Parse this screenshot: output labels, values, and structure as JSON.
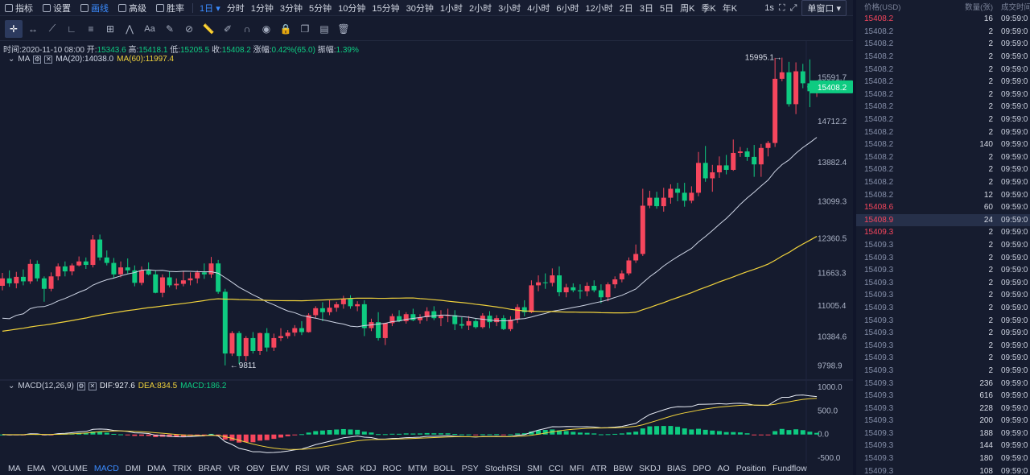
{
  "topbar": {
    "buttons": [
      {
        "label": "指标",
        "icon": "indicator-icon"
      },
      {
        "label": "设置",
        "icon": "gear-icon"
      },
      {
        "label": "画线",
        "icon": "pen-icon",
        "active": true
      },
      {
        "label": "高级",
        "icon": "calendar-icon"
      },
      {
        "label": "胜率",
        "icon": "clock-icon"
      }
    ],
    "interval_selected": "1日",
    "timeframes": [
      "分时",
      "1分钟",
      "3分钟",
      "5分钟",
      "10分钟",
      "15分钟",
      "30分钟",
      "1小时",
      "2小时",
      "3小时",
      "4小时",
      "6小时",
      "12小时",
      "2日",
      "3日",
      "5日",
      "周K",
      "季K",
      "年K"
    ],
    "refresh": "1s",
    "window_select": "单窗口"
  },
  "draw_tools": [
    "crosshair-icon",
    "hline-icon",
    "trendline-icon",
    "angle-icon",
    "channel-icon",
    "fib-icon",
    "pattern-icon",
    "text-icon",
    "brush-icon",
    "measure-icon",
    "ruler-icon",
    "edit-icon",
    "magnet-icon",
    "eye-icon",
    "lock-icon",
    "clone-icon",
    "layers-icon",
    "trash-icon"
  ],
  "draw_tool_text": "Aa",
  "info": {
    "time_label": "时间:",
    "time": "2020-11-10 08:00",
    "open_label": "开:",
    "open": "15343.6",
    "high_label": "高:",
    "high": "15418.1",
    "low_label": "低:",
    "low": "15205.5",
    "close_label": "收:",
    "close": "15408.2",
    "change_label": "涨幅:",
    "change": "0.42%(65.0)",
    "amp_label": "振幅:",
    "amp": "1.39%"
  },
  "ma_legend": {
    "name": "MA",
    "ma20": "MA(20):14038.0",
    "ma60": "MA(60):11997.4"
  },
  "macd_legend": {
    "name": "MACD(12,26,9)",
    "dif": "DIF:927.6",
    "dea": "DEA:834.5",
    "macd": "MACD:186.2"
  },
  "price_axis": [
    "15591.7",
    "14712.2",
    "13882.4",
    "13099.3",
    "12360.5",
    "11663.3",
    "11005.4",
    "10384.6",
    "9798.9"
  ],
  "macd_axis": [
    "1000.0",
    "500.0",
    "0.0",
    "-500.0"
  ],
  "current_price": "15408.2",
  "annotations": {
    "high": "15995.1",
    "low": "9811"
  },
  "colors": {
    "up": "#f6465d",
    "down": "#0ecb81",
    "ma20": "#cfd6e6",
    "ma60": "#f0d23c",
    "accent": "#3b8cff"
  },
  "chart_data": {
    "type": "candlestick",
    "ohlc": [
      [
        11410,
        11670,
        11320,
        11560
      ],
      [
        11560,
        11720,
        11390,
        11460
      ],
      [
        11460,
        11690,
        11360,
        11590
      ],
      [
        11590,
        11740,
        11420,
        11500
      ],
      [
        11500,
        11940,
        11450,
        11850
      ],
      [
        11850,
        11920,
        11500,
        11560
      ],
      [
        11560,
        11600,
        11090,
        11350
      ],
      [
        11350,
        11680,
        11300,
        11600
      ],
      [
        11600,
        11860,
        11520,
        11800
      ],
      [
        11800,
        11900,
        11600,
        11700
      ],
      [
        11700,
        11860,
        11620,
        11820
      ],
      [
        11820,
        12000,
        11800,
        11900
      ],
      [
        11900,
        11980,
        11750,
        11830
      ],
      [
        11830,
        12430,
        11780,
        12340
      ],
      [
        12340,
        12440,
        11920,
        11980
      ],
      [
        11980,
        12120,
        11820,
        11870
      ],
      [
        11870,
        11970,
        11560,
        11640
      ],
      [
        11640,
        11900,
        11580,
        11780
      ],
      [
        11780,
        11960,
        11660,
        11720
      ],
      [
        11720,
        11820,
        11400,
        11470
      ],
      [
        11470,
        11800,
        11420,
        11720
      ],
      [
        11720,
        11880,
        11620,
        11640
      ],
      [
        11640,
        11720,
        11260,
        11270
      ],
      [
        11270,
        11640,
        11180,
        11580
      ],
      [
        11580,
        11700,
        11380,
        11420
      ],
      [
        11420,
        11560,
        11340,
        11450
      ],
      [
        11450,
        11700,
        11400,
        11520
      ],
      [
        11520,
        11680,
        11420,
        11560
      ],
      [
        11560,
        11720,
        11460,
        11680
      ],
      [
        11680,
        11860,
        11550,
        11640
      ],
      [
        11640,
        11990,
        11570,
        11860
      ],
      [
        11860,
        11930,
        11250,
        11290
      ],
      [
        11290,
        11350,
        9811,
        10050
      ],
      [
        10050,
        10500,
        10000,
        10460
      ],
      [
        10460,
        10500,
        9840,
        10000
      ],
      [
        10000,
        10400,
        9900,
        10360
      ],
      [
        10360,
        10480,
        10050,
        10100
      ],
      [
        10100,
        10470,
        10020,
        10460
      ],
      [
        10460,
        10560,
        10090,
        10170
      ],
      [
        10170,
        10450,
        10100,
        10360
      ],
      [
        10360,
        10560,
        10300,
        10400
      ],
      [
        10400,
        10520,
        10350,
        10470
      ],
      [
        10470,
        10620,
        10400,
        10560
      ],
      [
        10560,
        10700,
        10420,
        10480
      ],
      [
        10480,
        10860,
        10470,
        10820
      ],
      [
        10820,
        11000,
        10760,
        10960
      ],
      [
        10960,
        11080,
        10700,
        10880
      ],
      [
        10880,
        11120,
        10820,
        10970
      ],
      [
        10970,
        11090,
        10890,
        11040
      ],
      [
        11040,
        11210,
        10950,
        11150
      ],
      [
        11150,
        11220,
        10950,
        11000
      ],
      [
        11000,
        11100,
        10900,
        11040
      ],
      [
        11040,
        11120,
        10400,
        10560
      ],
      [
        10560,
        10750,
        10500,
        10680
      ],
      [
        10680,
        10880,
        10310,
        10360
      ],
      [
        10360,
        10670,
        10220,
        10660
      ],
      [
        10660,
        10850,
        10600,
        10800
      ],
      [
        10800,
        10920,
        10680,
        10700
      ],
      [
        10700,
        10880,
        10650,
        10840
      ],
      [
        10840,
        10950,
        10700,
        10720
      ],
      [
        10720,
        10840,
        10650,
        10780
      ],
      [
        10780,
        10980,
        10700,
        10900
      ],
      [
        10900,
        11000,
        10720,
        10760
      ],
      [
        10760,
        10920,
        10600,
        10810
      ],
      [
        10810,
        10950,
        10680,
        10820
      ],
      [
        10820,
        10920,
        10520,
        10640
      ],
      [
        10640,
        10780,
        10550,
        10610
      ],
      [
        10610,
        10800,
        10520,
        10700
      ],
      [
        10700,
        10760,
        10550,
        10580
      ],
      [
        10580,
        10860,
        10550,
        10810
      ],
      [
        10810,
        10900,
        10560,
        10680
      ],
      [
        10680,
        10820,
        10600,
        10760
      ],
      [
        10760,
        10820,
        10520,
        10540
      ],
      [
        10540,
        10800,
        10500,
        10730
      ],
      [
        10730,
        11040,
        10660,
        10980
      ],
      [
        10980,
        11120,
        10800,
        10880
      ],
      [
        10880,
        11520,
        10860,
        11420
      ],
      [
        11420,
        11620,
        11300,
        11480
      ],
      [
        11480,
        11660,
        11350,
        11470
      ],
      [
        11470,
        11760,
        11400,
        11620
      ],
      [
        11620,
        11800,
        11200,
        11280
      ],
      [
        11280,
        11450,
        11180,
        11380
      ],
      [
        11380,
        11460,
        11280,
        11320
      ],
      [
        11320,
        11440,
        11150,
        11300
      ],
      [
        11300,
        11480,
        11200,
        11410
      ],
      [
        11410,
        11520,
        11280,
        11320
      ],
      [
        11320,
        11440,
        11060,
        11180
      ],
      [
        11180,
        11480,
        11100,
        11440
      ],
      [
        11440,
        11600,
        11360,
        11540
      ],
      [
        11540,
        11720,
        11480,
        11660
      ],
      [
        11660,
        11980,
        11620,
        11920
      ],
      [
        11920,
        12240,
        11870,
        12050
      ],
      [
        12050,
        13360,
        12010,
        13020
      ],
      [
        13020,
        13320,
        12970,
        13180
      ],
      [
        13180,
        13300,
        12960,
        13010
      ],
      [
        13010,
        13380,
        12900,
        13180
      ],
      [
        13180,
        13450,
        13060,
        13360
      ],
      [
        13360,
        13480,
        13110,
        13280
      ],
      [
        13280,
        13480,
        13000,
        13120
      ],
      [
        13120,
        13410,
        13070,
        13280
      ],
      [
        13280,
        14100,
        13210,
        13880
      ],
      [
        13880,
        14220,
        13500,
        13570
      ],
      [
        13570,
        13840,
        13300,
        13690
      ],
      [
        13690,
        14010,
        13580,
        13830
      ],
      [
        13830,
        14040,
        13650,
        13740
      ],
      [
        13740,
        14350,
        13720,
        14080
      ],
      [
        14080,
        14200,
        14000,
        14110
      ],
      [
        14110,
        14180,
        13920,
        14000
      ],
      [
        14000,
        14240,
        13600,
        13850
      ],
      [
        13850,
        14260,
        13600,
        14180
      ],
      [
        14180,
        14320,
        14010,
        14280
      ],
      [
        14280,
        15990,
        14200,
        15570
      ],
      [
        15570,
        15995,
        15520,
        15700
      ],
      [
        15700,
        15910,
        15010,
        15060
      ],
      [
        15060,
        15900,
        14860,
        15720
      ],
      [
        15720,
        15870,
        15380,
        15480
      ],
      [
        15480,
        15960,
        15000,
        15320
      ],
      [
        15343.6,
        15418.1,
        15205.5,
        15408.2
      ]
    ],
    "ma_series": [
      {
        "name": "MA(20)"
      },
      {
        "name": "MA(60)"
      }
    ],
    "macd_series": [
      {
        "name": "DIF"
      },
      {
        "name": "DEA"
      },
      {
        "name": "MACD"
      }
    ],
    "price_range": [
      9550,
      16150
    ],
    "macd_range": [
      -600,
      1050
    ],
    "grid": false
  },
  "indicators": [
    "MA",
    "EMA",
    "VOLUME",
    "MACD",
    "DMI",
    "DMA",
    "TRIX",
    "BRAR",
    "VR",
    "OBV",
    "EMV",
    "RSI",
    "WR",
    "SAR",
    "KDJ",
    "ROC",
    "MTM",
    "BOLL",
    "PSY",
    "StochRSI",
    "SMI",
    "CCI",
    "MFI",
    "ATR",
    "BBW",
    "SKDJ",
    "BIAS",
    "DPO",
    "AO",
    "Position",
    "Fundflow"
  ],
  "active_indicator": "MACD",
  "trades": {
    "headers": {
      "price": "价格(USD)",
      "qty": "数量(张)",
      "time": "成交时间"
    },
    "rows": [
      {
        "price": "15408.2",
        "qty": "16",
        "time": "09:59:0",
        "side": "up"
      },
      {
        "price": "15408.2",
        "qty": "2",
        "time": "09:59:0",
        "side": "dn"
      },
      {
        "price": "15408.2",
        "qty": "2",
        "time": "09:59:0",
        "side": "dn"
      },
      {
        "price": "15408.2",
        "qty": "2",
        "time": "09:59:0",
        "side": "dn"
      },
      {
        "price": "15408.2",
        "qty": "2",
        "time": "09:59:0",
        "side": "dn"
      },
      {
        "price": "15408.2",
        "qty": "2",
        "time": "09:59:0",
        "side": "dn"
      },
      {
        "price": "15408.2",
        "qty": "2",
        "time": "09:59:0",
        "side": "dn"
      },
      {
        "price": "15408.2",
        "qty": "2",
        "time": "09:59:0",
        "side": "dn"
      },
      {
        "price": "15408.2",
        "qty": "2",
        "time": "09:59:0",
        "side": "dn"
      },
      {
        "price": "15408.2",
        "qty": "2",
        "time": "09:59:0",
        "side": "dn"
      },
      {
        "price": "15408.2",
        "qty": "140",
        "time": "09:59:0",
        "side": "dn"
      },
      {
        "price": "15408.2",
        "qty": "2",
        "time": "09:59:0",
        "side": "dn"
      },
      {
        "price": "15408.2",
        "qty": "2",
        "time": "09:59:0",
        "side": "dn"
      },
      {
        "price": "15408.2",
        "qty": "2",
        "time": "09:59:0",
        "side": "dn"
      },
      {
        "price": "15408.2",
        "qty": "12",
        "time": "09:59:0",
        "side": "dn"
      },
      {
        "price": "15408.6",
        "qty": "60",
        "time": "09:59:0",
        "side": "up"
      },
      {
        "price": "15408.9",
        "qty": "24",
        "time": "09:59:0",
        "side": "up",
        "hl": true
      },
      {
        "price": "15409.3",
        "qty": "2",
        "time": "09:59:0",
        "side": "up"
      },
      {
        "price": "15409.3",
        "qty": "2",
        "time": "09:59:0",
        "side": "dn"
      },
      {
        "price": "15409.3",
        "qty": "2",
        "time": "09:59:0",
        "side": "dn"
      },
      {
        "price": "15409.3",
        "qty": "2",
        "time": "09:59:0",
        "side": "dn"
      },
      {
        "price": "15409.3",
        "qty": "2",
        "time": "09:59:0",
        "side": "dn"
      },
      {
        "price": "15409.3",
        "qty": "2",
        "time": "09:59:0",
        "side": "dn"
      },
      {
        "price": "15409.3",
        "qty": "2",
        "time": "09:59:0",
        "side": "dn"
      },
      {
        "price": "15409.3",
        "qty": "2",
        "time": "09:59:0",
        "side": "dn"
      },
      {
        "price": "15409.3",
        "qty": "2",
        "time": "09:59:0",
        "side": "dn"
      },
      {
        "price": "15409.3",
        "qty": "2",
        "time": "09:59:0",
        "side": "dn"
      },
      {
        "price": "15409.3",
        "qty": "2",
        "time": "09:59:0",
        "side": "dn"
      },
      {
        "price": "15409.3",
        "qty": "2",
        "time": "09:59:0",
        "side": "dn"
      },
      {
        "price": "15409.3",
        "qty": "236",
        "time": "09:59:0",
        "side": "dn"
      },
      {
        "price": "15409.3",
        "qty": "616",
        "time": "09:59:0",
        "side": "dn"
      },
      {
        "price": "15409.3",
        "qty": "228",
        "time": "09:59:0",
        "side": "dn"
      },
      {
        "price": "15409.3",
        "qty": "200",
        "time": "09:59:0",
        "side": "dn"
      },
      {
        "price": "15409.3",
        "qty": "188",
        "time": "09:59:0",
        "side": "dn"
      },
      {
        "price": "15409.3",
        "qty": "144",
        "time": "09:59:0",
        "side": "dn"
      },
      {
        "price": "15409.3",
        "qty": "180",
        "time": "09:59:0",
        "side": "dn"
      },
      {
        "price": "15409.3",
        "qty": "108",
        "time": "09:59:0",
        "side": "dn"
      }
    ]
  }
}
